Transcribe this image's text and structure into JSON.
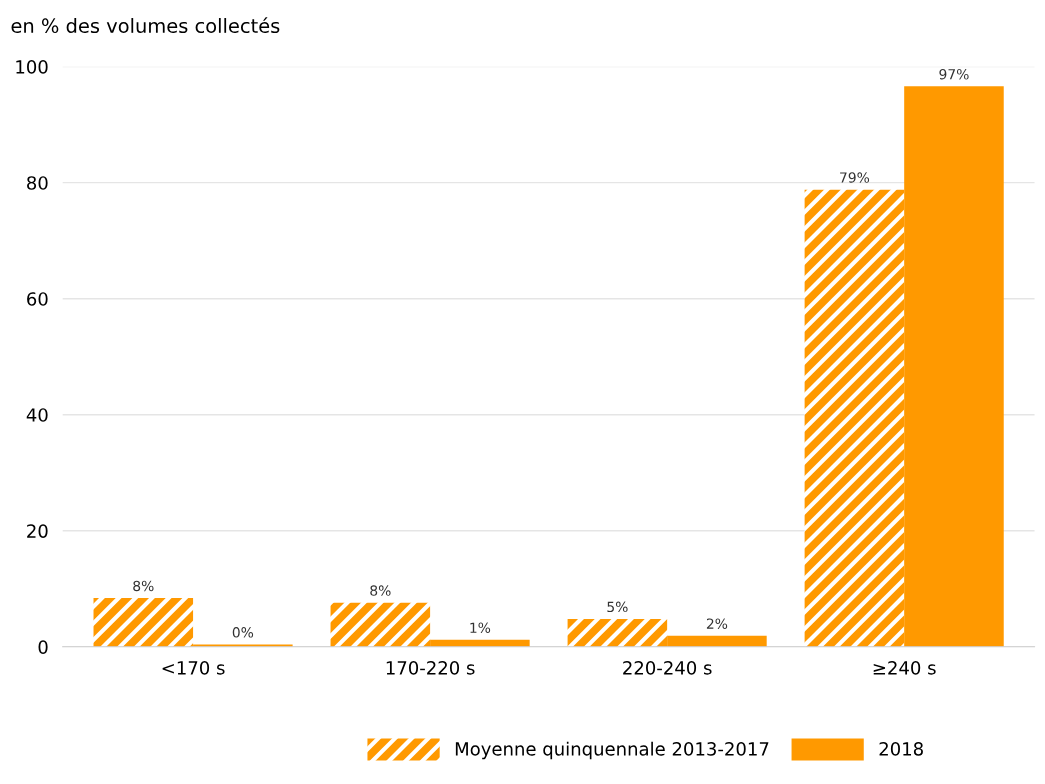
{
  "chart_data": {
    "type": "bar",
    "ylabel": "en % des volumes collectés",
    "categories": [
      "<170 s",
      "170-220 s",
      "220-240 s",
      "≥240 s"
    ],
    "series": [
      {
        "name": "Moyenne quinquennale 2013-2017",
        "color": "#ff9900",
        "values": [
          8.4,
          7.6,
          4.8,
          78.8
        ],
        "value_labels": [
          "8%",
          "8%",
          "5%",
          "79%"
        ]
      },
      {
        "name": "2018",
        "color": "#ff9900",
        "values": [
          0.4,
          1.2,
          1.9,
          96.6
        ],
        "value_labels": [
          "0%",
          "1%",
          "2%",
          "97%"
        ]
      }
    ],
    "ylim": [
      0,
      100
    ],
    "yticks": [
      0,
      20,
      40,
      60,
      80,
      100
    ],
    "grid": "y",
    "legend": "bottom"
  }
}
